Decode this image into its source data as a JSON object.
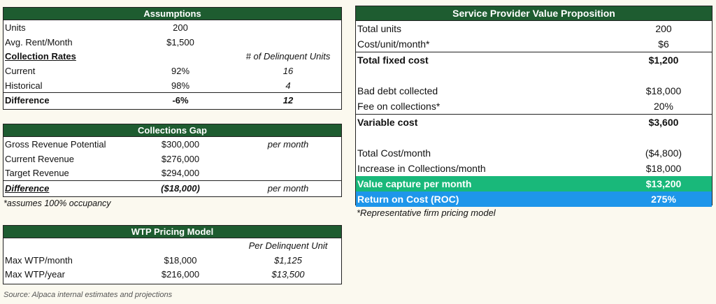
{
  "assumptions": {
    "title": "Assumptions",
    "units_label": "Units",
    "units_value": "200",
    "rent_label": "Avg. Rent/Month",
    "rent_value": "$1,500",
    "rates_label": "Collection Rates",
    "delinquent_header": "# of Delinquent Units",
    "current_label": "Current",
    "current_rate": "92%",
    "current_units": "16",
    "historical_label": "Historical",
    "historical_rate": "98%",
    "historical_units": "4",
    "difference_label": "Difference",
    "difference_rate": "-6%",
    "difference_units": "12"
  },
  "gap": {
    "title": "Collections Gap",
    "gross_label": "Gross Revenue Potential",
    "gross_value": "$300,000",
    "gross_note": "per month",
    "current_label": "Current Revenue",
    "current_value": "$276,000",
    "target_label": "Target Revenue",
    "target_value": "$294,000",
    "difference_label": "Difference",
    "difference_value": "($18,000)",
    "difference_note": "per month",
    "footnote": "*assumes 100% occupancy"
  },
  "wtp": {
    "title": "WTP Pricing Model",
    "per_unit_header": "Per Delinquent Unit",
    "month_label": "Max WTP/month",
    "month_value": "$18,000",
    "month_unit": "$1,125",
    "year_label": "Max WTP/year",
    "year_value": "$216,000",
    "year_unit": "$13,500"
  },
  "source": "Source: Alpaca internal estimates and projections",
  "svp": {
    "title": "Service Provider Value Proposition",
    "total_units_label": "Total units",
    "total_units_value": "200",
    "cost_unit_label": "Cost/unit/month*",
    "cost_unit_value": "$6",
    "fixed_label": "Total fixed cost",
    "fixed_value": "$1,200",
    "bad_debt_label": "Bad debt collected",
    "bad_debt_value": "$18,000",
    "fee_label": "Fee on collections*",
    "fee_value": "20%",
    "variable_label": "Variable cost",
    "variable_value": "$3,600",
    "total_cost_label": "Total Cost/month",
    "total_cost_value": "($4,800)",
    "increase_label": "Increase in Collections/month",
    "increase_value": "$18,000",
    "value_label": "Value capture per month",
    "value_value": "$13,200",
    "roc_label": "Return on Cost (ROC)",
    "roc_value": "275%",
    "footnote": "*Representative firm pricing model"
  },
  "colors": {
    "header_green": "#1e5c30",
    "value_green": "#19b87a",
    "roc_blue": "#1e96ea"
  }
}
